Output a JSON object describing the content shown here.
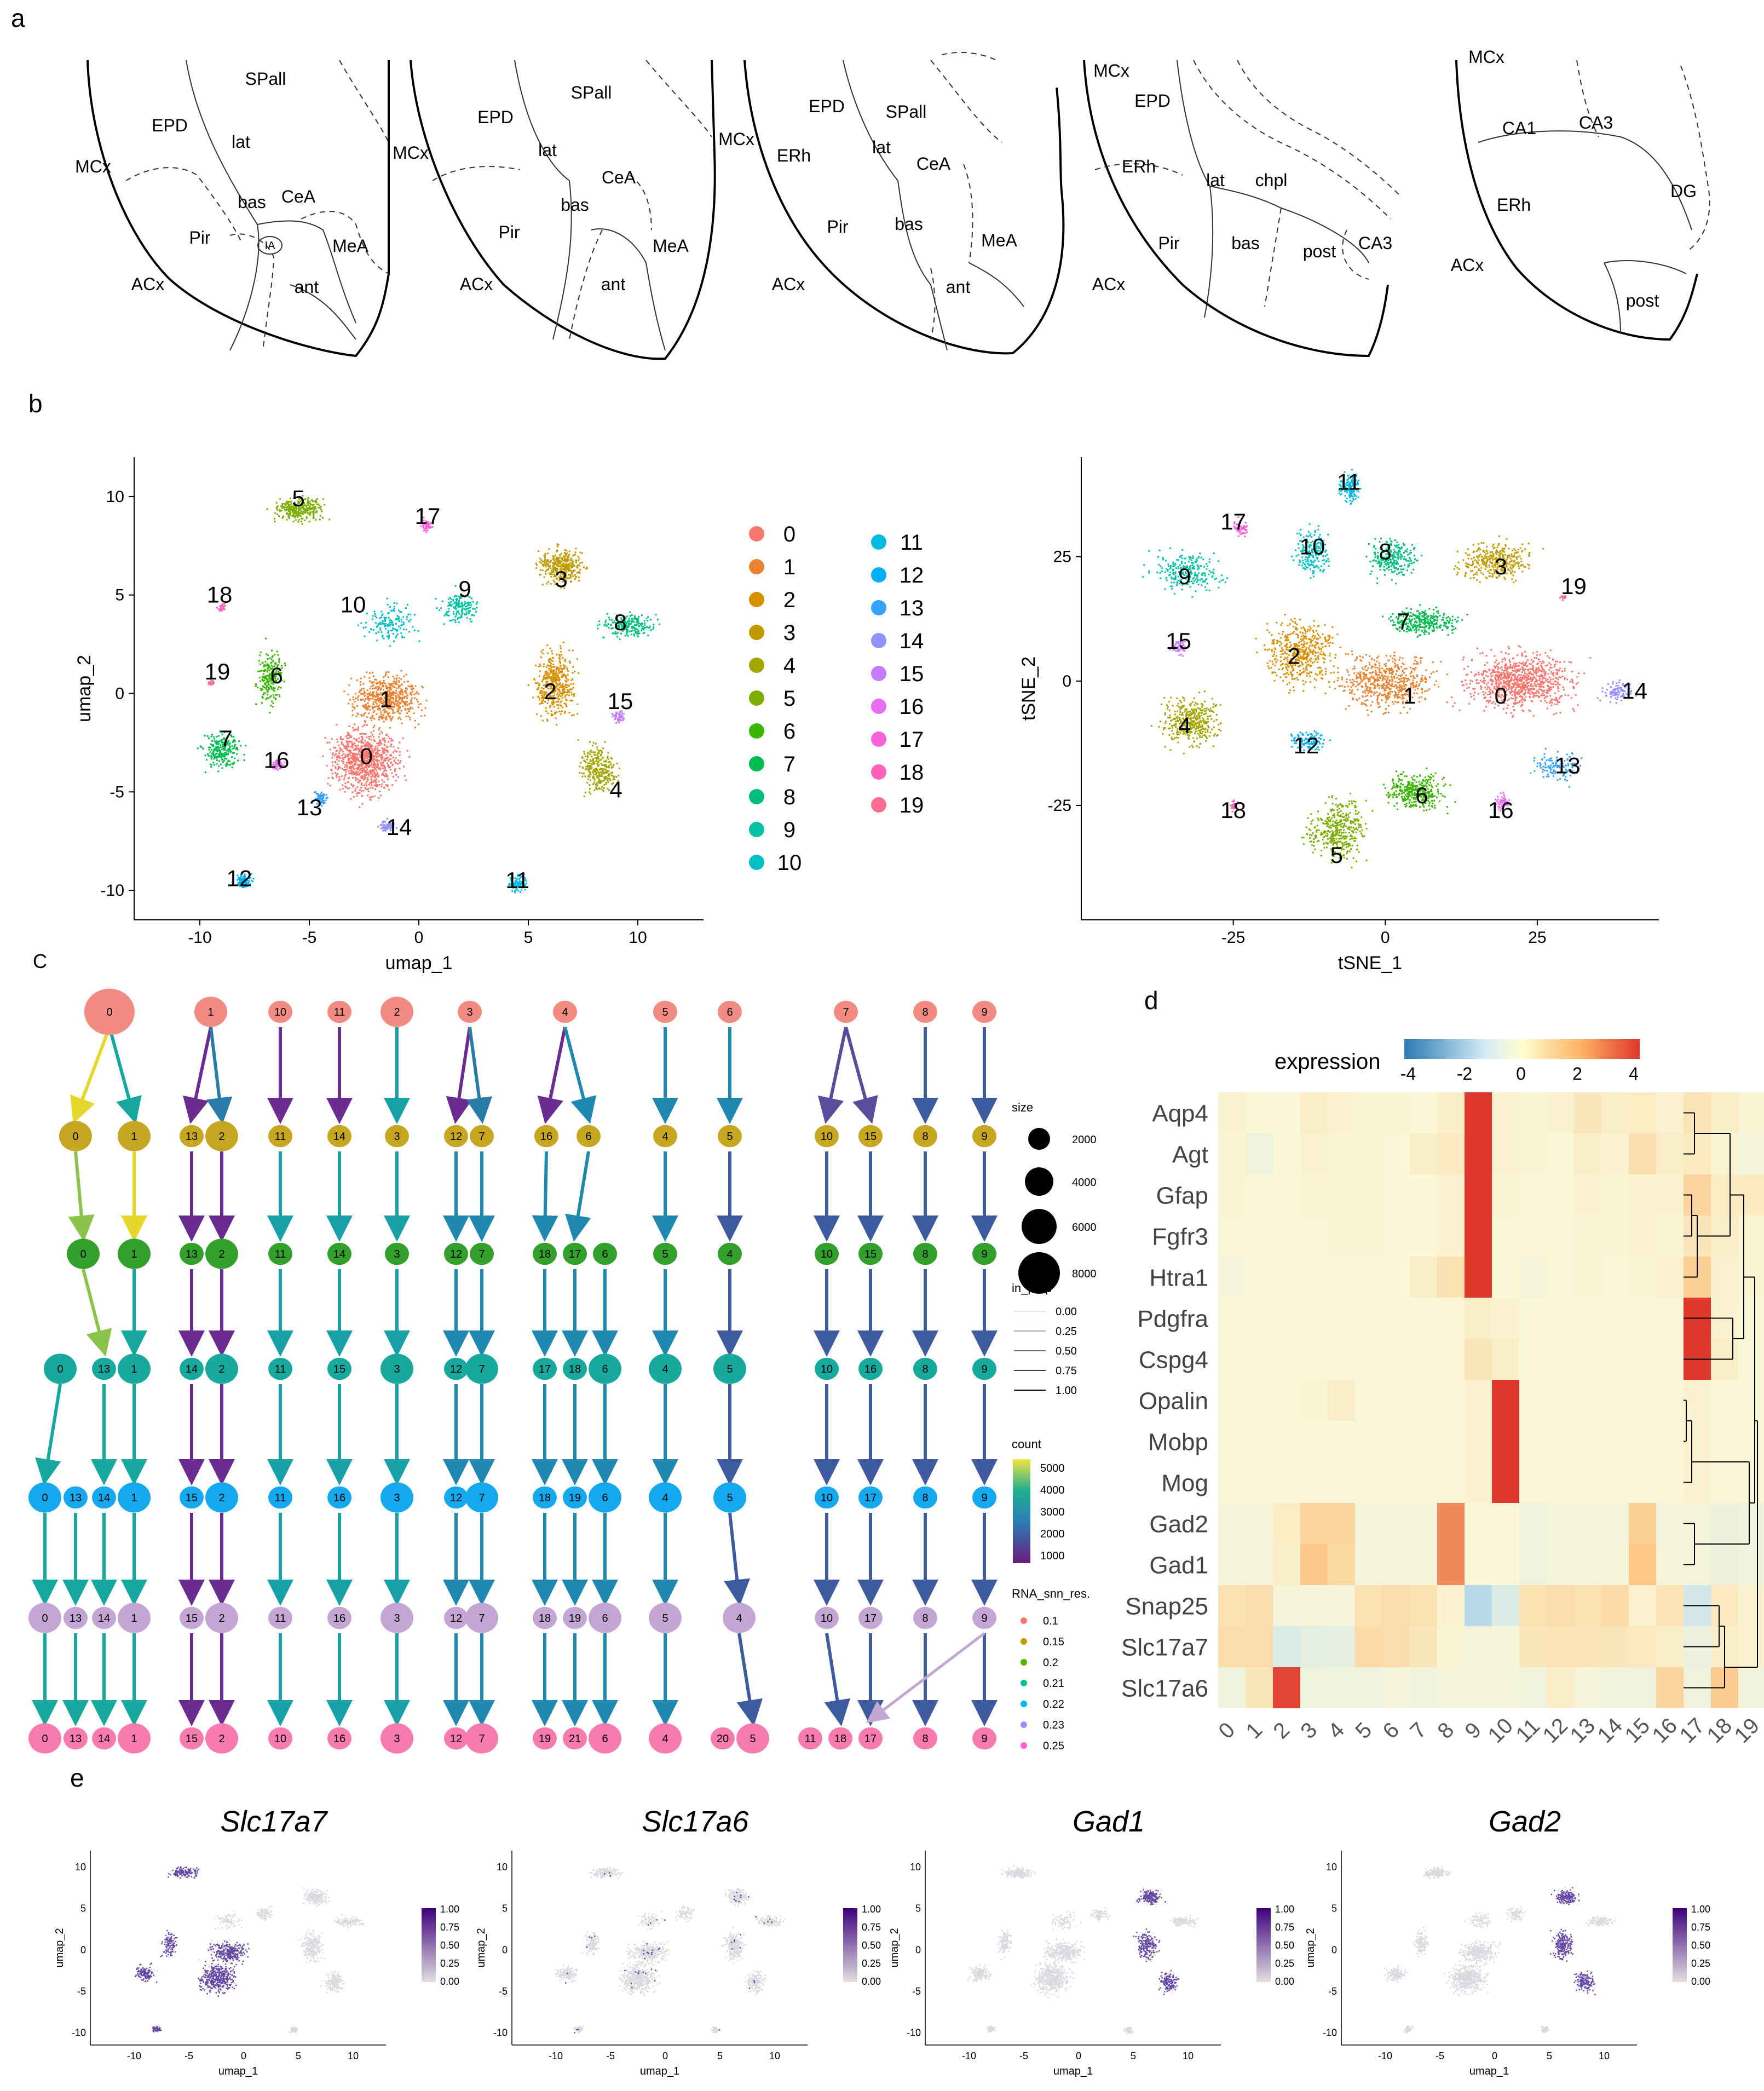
{
  "panels": {
    "a": "a",
    "b": "b",
    "c": "C",
    "d": "d",
    "e": "e"
  },
  "panel_a": {
    "sections": [
      {
        "labels": [
          {
            "t": "SPall"
          },
          {
            "t": "EPD"
          },
          {
            "t": "lat"
          },
          {
            "t": "MCx"
          },
          {
            "t": "CeA"
          },
          {
            "t": "bas"
          },
          {
            "t": "Pir"
          },
          {
            "t": "IA"
          },
          {
            "t": "MeA"
          },
          {
            "t": "ACx"
          },
          {
            "t": "ant"
          }
        ]
      },
      {
        "labels": [
          {
            "t": "SPall"
          },
          {
            "t": "EPD"
          },
          {
            "t": "MCx"
          },
          {
            "t": "lat"
          },
          {
            "t": "CeA"
          },
          {
            "t": "bas"
          },
          {
            "t": "Pir"
          },
          {
            "t": "MeA"
          },
          {
            "t": "ACx"
          },
          {
            "t": "ant"
          }
        ]
      },
      {
        "labels": [
          {
            "t": "EPD"
          },
          {
            "t": "SPall"
          },
          {
            "t": "MCx"
          },
          {
            "t": "ERh"
          },
          {
            "t": "lat"
          },
          {
            "t": "CeA"
          },
          {
            "t": "Pir"
          },
          {
            "t": "bas"
          },
          {
            "t": "MeA"
          },
          {
            "t": "ACx"
          },
          {
            "t": "ant"
          }
        ]
      },
      {
        "labels": [
          {
            "t": "MCx"
          },
          {
            "t": "EPD"
          },
          {
            "t": "ERh"
          },
          {
            "t": "lat"
          },
          {
            "t": "chpl"
          },
          {
            "t": "Pir"
          },
          {
            "t": "bas"
          },
          {
            "t": "post"
          },
          {
            "t": "CA3"
          },
          {
            "t": "ACx"
          }
        ]
      },
      {
        "labels": [
          {
            "t": "MCx"
          },
          {
            "t": "CA1"
          },
          {
            "t": "CA3"
          },
          {
            "t": "ERh"
          },
          {
            "t": "DG"
          },
          {
            "t": "ACx"
          },
          {
            "t": "post"
          }
        ]
      }
    ]
  },
  "panel_b": {
    "umap": {
      "xlabel": "umap_1",
      "ylabel": "umap_2",
      "xticks": [
        "-10",
        "-5",
        "0",
        "5",
        "10"
      ],
      "yticks": [
        "10",
        "5",
        "0",
        "-5",
        "-10"
      ]
    },
    "tsne": {
      "xlabel": "tSNE_1",
      "ylabel": "tSNE_2",
      "xticks": [
        "-25",
        "0",
        "25"
      ],
      "yticks": [
        "25",
        "0",
        "-25"
      ]
    },
    "legend": [
      "0",
      "1",
      "2",
      "3",
      "4",
      "5",
      "6",
      "7",
      "8",
      "9",
      "10",
      "11",
      "12",
      "13",
      "14",
      "15",
      "16",
      "17",
      "18",
      "19"
    ],
    "colors": [
      "#F8766D",
      "#EA8331",
      "#D89000",
      "#C09B00",
      "#A3A500",
      "#7CAE00",
      "#39B600",
      "#00BB4E",
      "#00BF7D",
      "#00C1A3",
      "#00BFC4",
      "#00BAE0",
      "#00B0F6",
      "#35A2FF",
      "#9590FF",
      "#C77CFF",
      "#E76BF3",
      "#FA62DB",
      "#FF62BC",
      "#FF6C91"
    ]
  },
  "panel_c": {
    "legend_size_title": "size",
    "size_labels": [
      "2000",
      "4000",
      "6000",
      "8000"
    ],
    "legend_prop_title": "in_prop",
    "prop_labels": [
      "0.00",
      "0.25",
      "0.50",
      "0.75",
      "1.00"
    ],
    "legend_count_title": "count",
    "count_labels": [
      "5000",
      "4000",
      "3000",
      "2000",
      "1000"
    ],
    "legend_res_title": "RNA_snn_res.",
    "res_labels": [
      "0.1",
      "0.15",
      "0.2",
      "0.21",
      "0.22",
      "0.23",
      "0.25"
    ],
    "res_colors": [
      "#F8766D",
      "#C49A00",
      "#53B400",
      "#00C094",
      "#00B6EB",
      "#A58AFF",
      "#FB61D7"
    ],
    "row_colors": [
      "#F28B82",
      "#C7A621",
      "#33A02C",
      "#17A99E",
      "#14A9EF",
      "#C3A6D4",
      "#F77BAE"
    ],
    "rows": [
      [
        "0",
        "1",
        "10",
        "11",
        "2",
        "3",
        "4",
        "5",
        "6",
        "7",
        "8",
        "9"
      ],
      [
        "0",
        "1",
        "13",
        "2",
        "11",
        "14",
        "3",
        "12",
        "7",
        "16",
        "6",
        "4",
        "5",
        "10",
        "15",
        "8",
        "9"
      ],
      [
        "0",
        "1",
        "13",
        "2",
        "11",
        "14",
        "3",
        "12",
        "7",
        "18",
        "17",
        "6",
        "5",
        "4",
        "10",
        "15",
        "8",
        "9"
      ],
      [
        "0",
        "13",
        "1",
        "14",
        "2",
        "11",
        "15",
        "3",
        "12",
        "7",
        "17",
        "18",
        "6",
        "4",
        "5",
        "10",
        "16",
        "8",
        "9"
      ],
      [
        "0",
        "13",
        "14",
        "1",
        "15",
        "2",
        "11",
        "16",
        "3",
        "12",
        "7",
        "18",
        "19",
        "6",
        "4",
        "5",
        "10",
        "17",
        "8",
        "9"
      ],
      [
        "0",
        "13",
        "14",
        "1",
        "15",
        "2",
        "11",
        "16",
        "3",
        "12",
        "7",
        "18",
        "19",
        "6",
        "5",
        "4",
        "10",
        "17",
        "8",
        "9"
      ],
      [
        "0",
        "13",
        "14",
        "1",
        "15",
        "2",
        "10",
        "16",
        "3",
        "12",
        "7",
        "19",
        "21",
        "6",
        "4",
        "20",
        "5",
        "11",
        "18",
        "17",
        "8",
        "9"
      ]
    ]
  },
  "panel_d": {
    "legend_title": "expression",
    "legend_ticks": [
      "-4",
      "-2",
      "0",
      "2",
      "4"
    ],
    "genes": [
      "Aqp4",
      "Agt",
      "Gfap",
      "Fgfr3",
      "Htra1",
      "Pdgfra",
      "Cspg4",
      "Opalin",
      "Mobp",
      "Mog",
      "Gad2",
      "Gad1",
      "Snap25",
      "Slc17a7",
      "Slc17a6"
    ],
    "clusters": [
      "0",
      "1",
      "2",
      "3",
      "4",
      "5",
      "6",
      "7",
      "8",
      "9",
      "10",
      "11",
      "12",
      "13",
      "14",
      "15",
      "16",
      "17",
      "18",
      "19"
    ],
    "matrix": [
      [
        0.2,
        0,
        0,
        0.3,
        0.2,
        0.1,
        0.1,
        0,
        0.3,
        4,
        0.2,
        0.1,
        0.2,
        0.6,
        0.3,
        0.4,
        0.2,
        0.7,
        0.3,
        0.1
      ],
      [
        0.1,
        -0.4,
        0,
        0.2,
        0.1,
        0.1,
        0,
        0.3,
        0.5,
        4,
        0.2,
        0.1,
        0,
        0.3,
        0.2,
        0.9,
        0.3,
        0.5,
        0.1,
        -0.3
      ],
      [
        0.1,
        0,
        0,
        0.1,
        0.1,
        0.1,
        0,
        0,
        0.2,
        4,
        0.1,
        0,
        0,
        0.2,
        0.1,
        0.2,
        0.2,
        1.2,
        0.4,
        0.5
      ],
      [
        0,
        0,
        0,
        0,
        0.1,
        0.1,
        0,
        0,
        0.2,
        4,
        0,
        0,
        0,
        0.1,
        0.1,
        0.2,
        0.1,
        0.6,
        0.3,
        0.1
      ],
      [
        -0.2,
        0,
        0,
        0,
        0,
        0,
        0,
        0.3,
        0.8,
        4,
        0,
        -0.3,
        0,
        0.1,
        0,
        0.1,
        0.2,
        1.4,
        0.2,
        0.1
      ],
      [
        0,
        0,
        0,
        0,
        0,
        0,
        0,
        0,
        0,
        0.3,
        0.2,
        0,
        0,
        0,
        0,
        0,
        0,
        4,
        0.2,
        0
      ],
      [
        0,
        0,
        0,
        0,
        0,
        0,
        0,
        0,
        0,
        0.6,
        0.3,
        0,
        0,
        0,
        0,
        0,
        0,
        4,
        0.3,
        0
      ],
      [
        0,
        0,
        0,
        0.1,
        0.3,
        0,
        0,
        0,
        0,
        0.2,
        4,
        0,
        0,
        0,
        0,
        0,
        0,
        0.2,
        0,
        0
      ],
      [
        0,
        0,
        0,
        0,
        0,
        0,
        0,
        0,
        0,
        0.2,
        4,
        0,
        0,
        0,
        0,
        0,
        0,
        0.2,
        0,
        0
      ],
      [
        0,
        0,
        0,
        0,
        0,
        0,
        0,
        0,
        0,
        0.2,
        4,
        0,
        0,
        0,
        0,
        0,
        0,
        0.2,
        0,
        0
      ],
      [
        -0.3,
        -0.3,
        0.4,
        1.2,
        1.2,
        -0.3,
        -0.3,
        -0.3,
        2.8,
        0,
        0,
        -0.4,
        -0.3,
        -0.3,
        -0.3,
        1.4,
        -0.3,
        -0.3,
        -0.5,
        -0.4
      ],
      [
        -0.3,
        -0.3,
        0.3,
        1.6,
        1.1,
        -0.3,
        -0.2,
        -0.3,
        2.8,
        0,
        0,
        -0.4,
        -0.3,
        -0.3,
        -0.3,
        1.7,
        -0.3,
        -0.3,
        -0.5,
        -0.4
      ],
      [
        0.8,
        0.9,
        -0.3,
        -0.3,
        -0.3,
        0.8,
        0.9,
        0.8,
        0.2,
        -2.2,
        -1.2,
        0.8,
        0.9,
        0.8,
        1.0,
        0.2,
        0.7,
        -1.6,
        0.5,
        0.2
      ],
      [
        0.9,
        0.9,
        -1.2,
        -0.9,
        -0.8,
        1.0,
        0.9,
        0.6,
        0.1,
        -0.3,
        -0.2,
        0.6,
        0.7,
        0.7,
        0.6,
        0.5,
        0.3,
        -0.6,
        0.3,
        0.2
      ],
      [
        -0.4,
        0.6,
        3.8,
        -0.4,
        -0.4,
        -0.4,
        -0.3,
        -0.4,
        -0.3,
        -0.3,
        -0.3,
        -0.4,
        0.3,
        -0.3,
        -0.4,
        -0.4,
        1.2,
        -0.4,
        1.5,
        -0.4
      ]
    ]
  },
  "panel_e": {
    "plots": [
      {
        "title": "Slc17a7",
        "pattern": "left"
      },
      {
        "title": "Slc17a6",
        "pattern": "sparse"
      },
      {
        "title": "Gad1",
        "pattern": "right"
      },
      {
        "title": "Gad2",
        "pattern": "right"
      }
    ],
    "xlabel": "umap_1",
    "ylabel": "umap_2",
    "xticks": [
      "-10",
      "-5",
      "0",
      "5",
      "10"
    ],
    "yticks": [
      "10",
      "5",
      "0",
      "-5",
      "-10"
    ],
    "legend_ticks": [
      "1.00",
      "0.75",
      "0.50",
      "0.25",
      "0.00"
    ],
    "color_low": "#E0E0E0",
    "color_high": "#3F007D"
  }
}
